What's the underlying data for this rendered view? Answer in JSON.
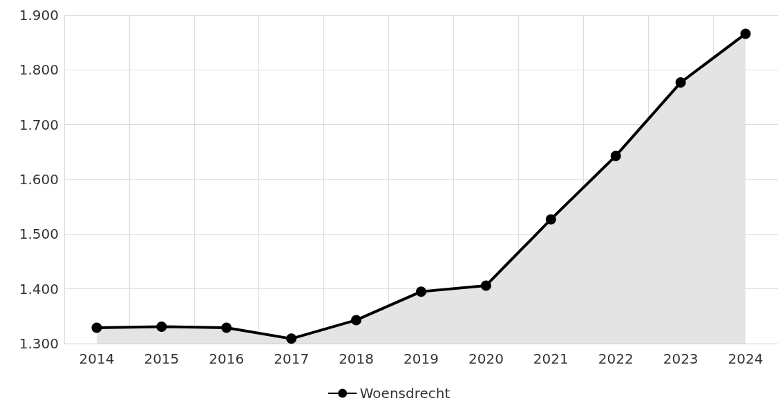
{
  "chart_data": {
    "type": "area",
    "categories": [
      "2014",
      "2015",
      "2016",
      "2017",
      "2018",
      "2019",
      "2020",
      "2021",
      "2022",
      "2023",
      "2024"
    ],
    "series": [
      {
        "name": "Woensdrecht",
        "color": "#000000",
        "values": [
          1329,
          1331,
          1329,
          1309,
          1343,
          1395,
          1406,
          1527,
          1643,
          1777,
          1866
        ]
      }
    ],
    "ylim": [
      1300,
      1900
    ],
    "yticks": [
      {
        "value": 1300,
        "label": "1.300"
      },
      {
        "value": 1400,
        "label": "1.400"
      },
      {
        "value": 1500,
        "label": "1.500"
      },
      {
        "value": 1600,
        "label": "1.600"
      },
      {
        "value": 1700,
        "label": "1.700"
      },
      {
        "value": 1800,
        "label": "1.800"
      },
      {
        "value": 1900,
        "label": "1.900"
      }
    ],
    "grid": true,
    "legend": "bottom",
    "marker": "circle",
    "line_style": "solid"
  }
}
